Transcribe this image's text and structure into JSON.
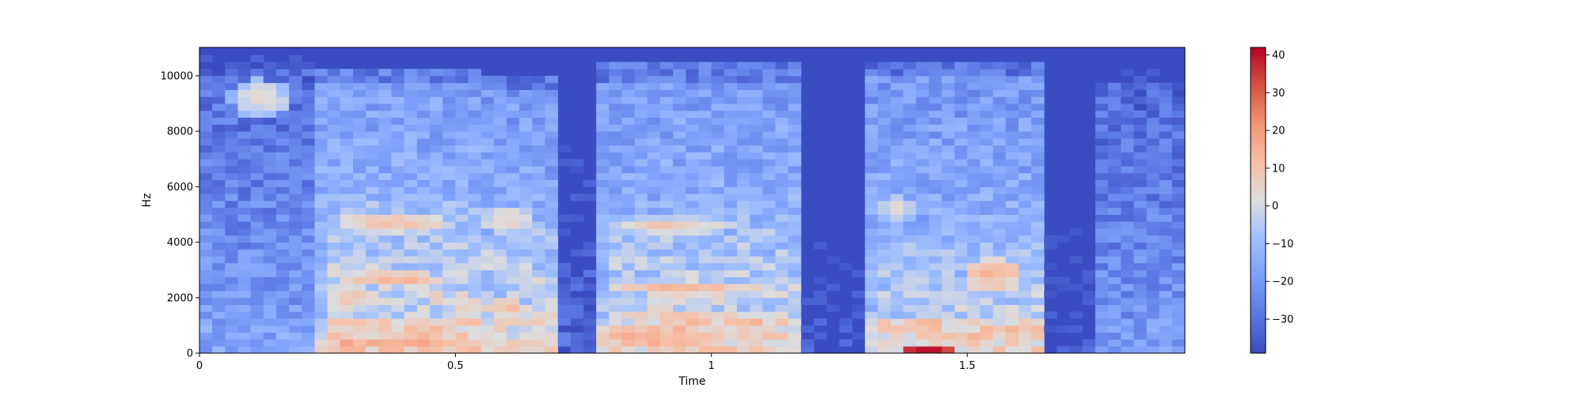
{
  "chart_data": {
    "type": "heatmap",
    "title": "",
    "xlabel": "Time",
    "ylabel": "Hz",
    "xlim": [
      0,
      1.925
    ],
    "ylim": [
      0,
      11025
    ],
    "x_ticks": [
      0,
      0.5,
      1,
      1.5
    ],
    "x_tick_labels": [
      "0",
      "0.5",
      "1",
      "1.5"
    ],
    "y_ticks": [
      0,
      2000,
      4000,
      6000,
      8000,
      10000
    ],
    "y_tick_labels": [
      "0",
      "2000",
      "4000",
      "6000",
      "8000",
      "10000"
    ],
    "colorbar": {
      "range": [
        -39,
        42
      ],
      "ticks": [
        -30,
        -20,
        -10,
        0,
        10,
        20,
        30,
        40
      ],
      "tick_labels": [
        "−30",
        "−20",
        "−10",
        "0",
        "10",
        "20",
        "30",
        "40"
      ],
      "colormap": "coolwarm"
    },
    "time_bin_seconds": 0.025,
    "freq_bin_hz": 250,
    "segments": [
      {
        "t_start": 0.0,
        "t_end": 0.23,
        "level_db": -18,
        "top_hz": 10800,
        "lf_boost_db": 2
      },
      {
        "t_start": 0.23,
        "t_end": 0.56,
        "level_db": -6,
        "top_hz": 10300,
        "lf_boost_db": 8
      },
      {
        "t_start": 0.56,
        "t_end": 0.7,
        "level_db": -8,
        "top_hz": 10000,
        "lf_boost_db": 6
      },
      {
        "t_start": 0.7,
        "t_end": 0.78,
        "level_db": -32,
        "top_hz": 9000,
        "lf_boost_db": 0
      },
      {
        "t_start": 0.78,
        "t_end": 1.18,
        "level_db": -7,
        "top_hz": 10400,
        "lf_boost_db": 8
      },
      {
        "t_start": 1.18,
        "t_end": 1.3,
        "level_db": -37,
        "top_hz": 8000,
        "lf_boost_db": 0
      },
      {
        "t_start": 1.3,
        "t_end": 1.65,
        "level_db": -8,
        "top_hz": 10600,
        "lf_boost_db": 10
      },
      {
        "t_start": 1.65,
        "t_end": 1.74,
        "level_db": -37,
        "top_hz": 8000,
        "lf_boost_db": 0
      },
      {
        "t_start": 1.74,
        "t_end": 1.925,
        "level_db": -20,
        "top_hz": 10300,
        "lf_boost_db": 2
      }
    ],
    "hotspots": [
      {
        "t": 0.12,
        "f_hz": 9200,
        "db": 2,
        "dt": 0.06,
        "df_hz": 700
      },
      {
        "t": 0.38,
        "f_hz": 4700,
        "db": 10,
        "dt": 0.12,
        "df_hz": 350
      },
      {
        "t": 0.38,
        "f_hz": 2700,
        "db": 14,
        "dt": 0.1,
        "df_hz": 250
      },
      {
        "t": 0.3,
        "f_hz": 2000,
        "db": 12,
        "dt": 0.06,
        "df_hz": 200
      },
      {
        "t": 0.4,
        "f_hz": 450,
        "db": 18,
        "dt": 0.12,
        "df_hz": 200
      },
      {
        "t": 0.6,
        "f_hz": 4800,
        "db": 6,
        "dt": 0.05,
        "df_hz": 500
      },
      {
        "t": 0.6,
        "f_hz": 1700,
        "db": 12,
        "dt": 0.05,
        "df_hz": 250
      },
      {
        "t": 0.92,
        "f_hz": 4600,
        "db": 8,
        "dt": 0.12,
        "df_hz": 300
      },
      {
        "t": 0.95,
        "f_hz": 2300,
        "db": 14,
        "dt": 0.16,
        "df_hz": 200
      },
      {
        "t": 0.95,
        "f_hz": 1300,
        "db": 10,
        "dt": 0.16,
        "df_hz": 200
      },
      {
        "t": 0.9,
        "f_hz": 500,
        "db": 16,
        "dt": 0.14,
        "df_hz": 250
      },
      {
        "t": 1.36,
        "f_hz": 5200,
        "db": 2,
        "dt": 0.04,
        "df_hz": 500
      },
      {
        "t": 1.55,
        "f_hz": 3000,
        "db": 14,
        "dt": 0.06,
        "df_hz": 400
      },
      {
        "t": 1.55,
        "f_hz": 2500,
        "db": 10,
        "dt": 0.06,
        "df_hz": 250
      },
      {
        "t": 1.42,
        "f_hz": 150,
        "db": 40,
        "dt": 0.05,
        "df_hz": 200
      }
    ],
    "harmonic_bands": [
      {
        "t_start": 0.25,
        "t_end": 0.7,
        "f0_hz": 220,
        "count": 24,
        "db": 6
      },
      {
        "t_start": 0.8,
        "t_end": 1.18,
        "f0_hz": 200,
        "count": 26,
        "db": 5
      },
      {
        "t_start": 1.32,
        "t_end": 1.64,
        "f0_hz": 190,
        "count": 22,
        "db": 4
      }
    ]
  }
}
